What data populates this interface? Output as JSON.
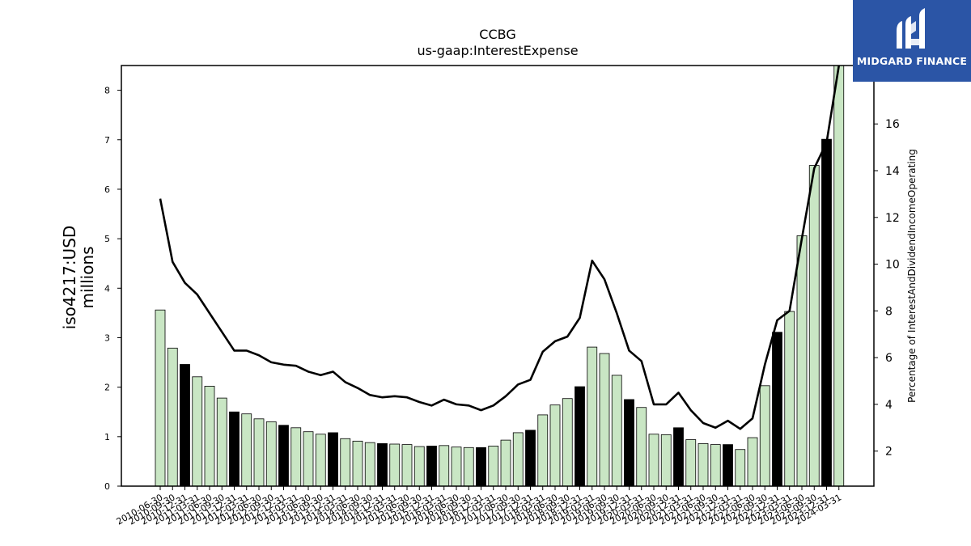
{
  "chart_data": {
    "type": "bar",
    "title": "CCBG",
    "subtitle": "us-gaap:InterestExpense",
    "ylabel": "iso4217:USD",
    "ylabel_unit": "millions",
    "y2label": "Percentage of InterestAndDividendIncomeOperating",
    "ylim": [
      0,
      8.5
    ],
    "y_ticks": [
      0,
      1,
      2,
      3,
      4,
      5,
      6,
      7,
      8
    ],
    "y2lim": [
      0.5,
      18.5
    ],
    "y2_ticks": [
      2,
      4,
      6,
      8,
      10,
      12,
      14,
      16
    ],
    "grid": false,
    "legend": "none",
    "colors": {
      "bar_default": "#c9e6c4",
      "bar_highlight": "#000000",
      "line": "#000000"
    },
    "categories": [
      "2010-06-30",
      "2010-09-30",
      "2010-12-31",
      "2011-03-31",
      "2011-06-30",
      "2011-09-30",
      "2011-12-31",
      "2012-03-31",
      "2012-06-30",
      "2012-09-30",
      "2012-12-31",
      "2013-03-31",
      "2013-06-30",
      "2013-09-30",
      "2013-12-31",
      "2014-03-31",
      "2014-06-30",
      "2014-09-30",
      "2014-12-31",
      "2015-03-31",
      "2015-06-30",
      "2015-09-30",
      "2015-12-31",
      "2016-03-31",
      "2016-06-30",
      "2016-09-30",
      "2016-12-31",
      "2017-03-31",
      "2017-06-30",
      "2017-09-30",
      "2017-12-31",
      "2018-03-31",
      "2018-06-30",
      "2018-09-30",
      "2018-12-31",
      "2019-03-31",
      "2019-06-30",
      "2019-09-30",
      "2019-12-31",
      "2020-03-31",
      "2020-06-30",
      "2020-09-30",
      "2020-12-31",
      "2021-03-31",
      "2021-06-30",
      "2021-09-30",
      "2021-12-31",
      "2022-03-31",
      "2022-06-30",
      "2022-09-30",
      "2022-12-31",
      "2023-03-31",
      "2023-06-30",
      "2023-09-30",
      "2023-12-31",
      "2024-03-31"
    ],
    "series": [
      {
        "type": "bar",
        "axis": "left",
        "values": [
          3.56,
          2.79,
          2.46,
          2.21,
          2.02,
          1.78,
          1.5,
          1.46,
          1.36,
          1.3,
          1.23,
          1.18,
          1.1,
          1.05,
          1.08,
          0.96,
          0.91,
          0.88,
          0.86,
          0.85,
          0.84,
          0.8,
          0.81,
          0.82,
          0.79,
          0.78,
          0.78,
          0.81,
          0.93,
          1.08,
          1.13,
          1.44,
          1.64,
          1.77,
          2.01,
          2.81,
          2.68,
          2.24,
          1.75,
          1.59,
          1.05,
          1.04,
          1.18,
          0.94,
          0.86,
          0.84,
          0.84,
          0.74,
          0.98,
          2.03,
          3.11,
          3.53,
          5.06,
          6.48,
          7.01,
          8.5
        ],
        "highlight": [
          false,
          false,
          true,
          false,
          false,
          false,
          true,
          false,
          false,
          false,
          true,
          false,
          false,
          false,
          true,
          false,
          false,
          false,
          true,
          false,
          false,
          false,
          true,
          false,
          false,
          false,
          true,
          false,
          false,
          false,
          true,
          false,
          false,
          false,
          true,
          false,
          false,
          false,
          true,
          false,
          false,
          false,
          true,
          false,
          false,
          false,
          true,
          false,
          false,
          false,
          true,
          false,
          false,
          false,
          true,
          false
        ]
      },
      {
        "type": "line",
        "axis": "right",
        "values": [
          12.8,
          10.1,
          9.2,
          8.7,
          7.9,
          7.1,
          6.3,
          6.3,
          6.1,
          5.8,
          5.7,
          5.65,
          5.4,
          5.25,
          5.4,
          4.95,
          4.7,
          4.4,
          4.3,
          4.35,
          4.3,
          4.1,
          3.95,
          4.2,
          4.0,
          3.95,
          3.75,
          3.95,
          4.35,
          4.85,
          5.05,
          6.25,
          6.7,
          6.9,
          7.7,
          10.15,
          9.35,
          7.9,
          6.3,
          5.85,
          4.0,
          4.0,
          4.5,
          3.75,
          3.2,
          3.0,
          3.3,
          2.95,
          3.4,
          5.7,
          7.6,
          8.0,
          11.1,
          14.1,
          15.2,
          18.5
        ]
      }
    ]
  },
  "logo": {
    "text": "MIDGARD FINANCE",
    "mark": "midgard-logo-mark"
  }
}
